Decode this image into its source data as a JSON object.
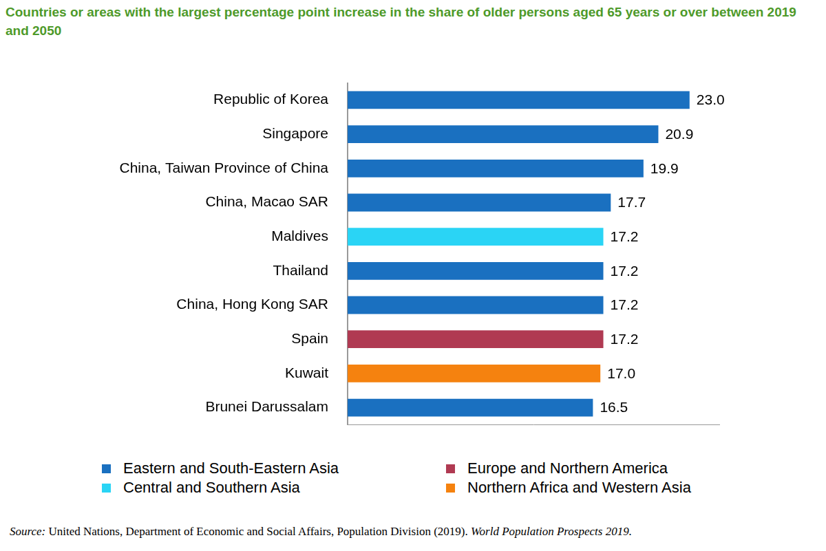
{
  "chart_data": {
    "type": "bar",
    "title": "Countries or areas with the largest percentage point increase in the share of older persons aged 65 years or over between 2019 and 2050",
    "orientation": "horizontal",
    "stacked": true,
    "data_labels": true,
    "tick_labels": "y",
    "grid": false,
    "legend": "bottom",
    "xlim": [
      0,
      25
    ],
    "xticks": [],
    "categories": [
      "Republic of Korea",
      "Singapore",
      "China, Taiwan Province of China",
      "China, Macao SAR",
      "Maldives",
      "Thailand",
      "China, Hong Kong SAR",
      "Spain",
      "Kuwait",
      "Brunei Darussalam"
    ],
    "series": [
      {
        "name": "Eastern and South-Eastern Asia",
        "color": "#1a70c0",
        "values": [
          23.0,
          20.9,
          19.9,
          17.7,
          null,
          17.2,
          17.2,
          null,
          null,
          16.5
        ],
        "value_labels": [
          "23.0",
          "20.9",
          "19.9",
          "17.7",
          null,
          "17.2",
          "17.2",
          null,
          null,
          "16.5"
        ]
      },
      {
        "name": "Central and Southern Asia",
        "color": "#2ad4f5",
        "values": [
          null,
          null,
          null,
          null,
          17.2,
          null,
          null,
          null,
          null,
          null
        ],
        "value_labels": [
          null,
          null,
          null,
          null,
          "17.2",
          null,
          null,
          null,
          null,
          null
        ]
      },
      {
        "name": "Europe and Northern America",
        "color": "#b03a52",
        "values": [
          null,
          null,
          null,
          null,
          null,
          null,
          null,
          17.2,
          null,
          null
        ],
        "value_labels": [
          null,
          null,
          null,
          null,
          null,
          null,
          null,
          "17.2",
          null,
          null
        ]
      },
      {
        "name": "Northern Africa and Western Asia",
        "color": "#f5820f",
        "values": [
          null,
          null,
          null,
          null,
          null,
          null,
          null,
          null,
          17.0,
          null
        ],
        "value_labels": [
          null,
          null,
          null,
          null,
          null,
          null,
          null,
          null,
          "17.0",
          null
        ]
      }
    ],
    "source": {
      "label": "Source:",
      "text": "United Nations, Department of Economic and Social Affairs, Population Division (2019).",
      "publication": "World Population Prospects 2019."
    }
  }
}
